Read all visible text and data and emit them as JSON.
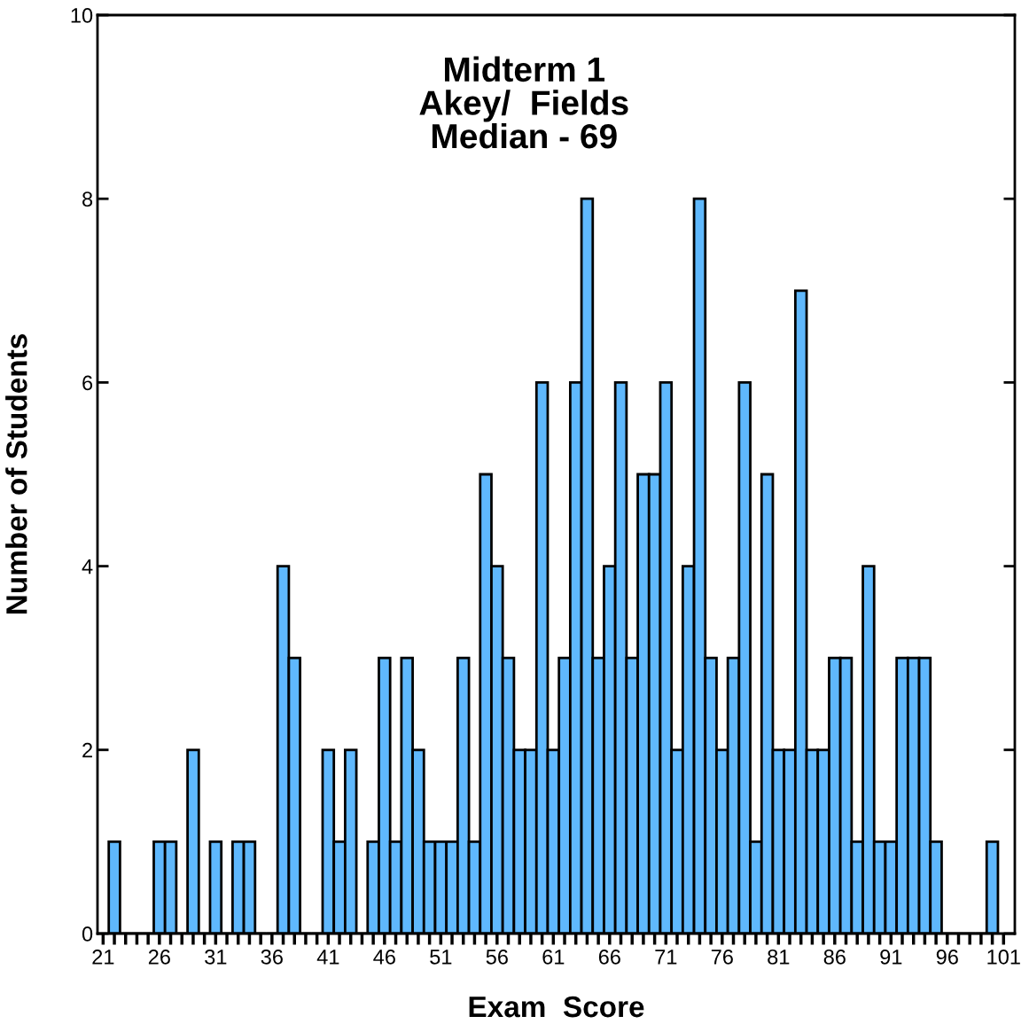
{
  "chart_data": {
    "type": "histogram",
    "title": "Midterm 1\nAkey/  Fields\nMedian - 69",
    "xlabel": "Exam  Score",
    "ylabel": "Number of Students",
    "bins": [
      21.5,
      22.5,
      23.5,
      24.5,
      25.5,
      26.5,
      27.5,
      28.5,
      29.5,
      30.5,
      31.5,
      32.5,
      33.5,
      34.5,
      35.5,
      36.5,
      37.5,
      38.5,
      39.5,
      40.5,
      41.5,
      42.5,
      43.5,
      44.5,
      45.5,
      46.5,
      47.5,
      48.5,
      49.5,
      50.5,
      51.5,
      52.5,
      53.5,
      54.5,
      55.5,
      56.5,
      57.5,
      58.5,
      59.5,
      60.5,
      61.5,
      62.5,
      63.5,
      64.5,
      65.5,
      66.5,
      67.5,
      68.5,
      69.5,
      70.5,
      71.5,
      72.5,
      73.5,
      74.5,
      75.5,
      76.5,
      77.5,
      78.5,
      79.5,
      80.5,
      81.5,
      82.5,
      83.5,
      84.5,
      85.5,
      86.5,
      87.5,
      88.5,
      89.5,
      90.5,
      91.5,
      92.5,
      93.5,
      94.5,
      95.5,
      96.5,
      97.5,
      98.5,
      99.5,
      100.5
    ],
    "values": [
      1,
      0,
      0,
      0,
      1,
      1,
      0,
      2,
      0,
      1,
      0,
      1,
      1,
      0,
      0,
      4,
      3,
      0,
      0,
      2,
      1,
      2,
      0,
      1,
      3,
      1,
      3,
      2,
      1,
      1,
      1,
      3,
      1,
      5,
      4,
      3,
      2,
      2,
      6,
      2,
      3,
      6,
      8,
      3,
      4,
      6,
      3,
      5,
      5,
      6,
      2,
      4,
      8,
      3,
      2,
      3,
      6,
      1,
      5,
      2,
      2,
      7,
      2,
      2,
      3,
      3,
      1,
      4,
      1,
      1,
      3,
      3,
      3,
      1,
      0,
      0,
      0,
      0,
      1
    ],
    "color": "#5fb8fd",
    "xlim": [
      20.5,
      102
    ],
    "ylim": [
      0,
      10
    ],
    "xticks": [
      21,
      {
        "value": 22,
        "label": null
      },
      {
        "value": 23,
        "label": null
      },
      {
        "value": 24,
        "label": null
      },
      {
        "value": 25,
        "label": null
      },
      26,
      {
        "value": 27,
        "label": null
      },
      {
        "value": 28,
        "label": null
      },
      {
        "value": 29,
        "label": null
      },
      {
        "value": 30,
        "label": null
      },
      31,
      {
        "value": 32,
        "label": null
      },
      {
        "value": 33,
        "label": null
      },
      {
        "value": 34,
        "label": null
      },
      {
        "value": 35,
        "label": null
      },
      36,
      {
        "value": 37,
        "label": null
      },
      {
        "value": 38,
        "label": null
      },
      {
        "value": 39,
        "label": null
      },
      {
        "value": 40,
        "label": null
      },
      41,
      {
        "value": 42,
        "label": null
      },
      {
        "value": 43,
        "label": null
      },
      {
        "value": 44,
        "label": null
      },
      {
        "value": 45,
        "label": null
      },
      46,
      {
        "value": 47,
        "label": null
      },
      {
        "value": 48,
        "label": null
      },
      {
        "value": 49,
        "label": null
      },
      {
        "value": 50,
        "label": null
      },
      51,
      {
        "value": 52,
        "label": null
      },
      {
        "value": 53,
        "label": null
      },
      {
        "value": 54,
        "label": null
      },
      {
        "value": 55,
        "label": null
      },
      56,
      {
        "value": 57,
        "label": null
      },
      {
        "value": 58,
        "label": null
      },
      {
        "value": 59,
        "label": null
      },
      {
        "value": 60,
        "label": null
      },
      61,
      {
        "value": 62,
        "label": null
      },
      {
        "value": 63,
        "label": null
      },
      {
        "value": 64,
        "label": null
      },
      {
        "value": 65,
        "label": null
      },
      66,
      {
        "value": 67,
        "label": null
      },
      {
        "value": 68,
        "label": null
      },
      {
        "value": 69,
        "label": null
      },
      {
        "value": 70,
        "label": null
      },
      71,
      {
        "value": 72,
        "label": null
      },
      {
        "value": 73,
        "label": null
      },
      {
        "value": 74,
        "label": null
      },
      {
        "value": 75,
        "label": null
      },
      76,
      {
        "value": 77,
        "label": null
      },
      {
        "value": 78,
        "label": null
      },
      {
        "value": 79,
        "label": null
      },
      {
        "value": 80,
        "label": null
      },
      81,
      {
        "value": 82,
        "label": null
      },
      {
        "value": 83,
        "label": null
      },
      {
        "value": 84,
        "label": null
      },
      {
        "value": 85,
        "label": null
      },
      86,
      {
        "value": 87,
        "label": null
      },
      {
        "value": 88,
        "label": null
      },
      {
        "value": 89,
        "label": null
      },
      {
        "value": 90,
        "label": null
      },
      91,
      {
        "value": 92,
        "label": null
      },
      {
        "value": 93,
        "label": null
      },
      {
        "value": 94,
        "label": null
      },
      {
        "value": 95,
        "label": null
      },
      96,
      {
        "value": 97,
        "label": null
      },
      {
        "value": 98,
        "label": null
      },
      {
        "value": 99,
        "label": null
      },
      {
        "value": 100,
        "label": null
      },
      101
    ],
    "yticks": [
      0,
      2,
      4,
      6,
      8,
      10
    ],
    "grid": false,
    "legend": false
  }
}
